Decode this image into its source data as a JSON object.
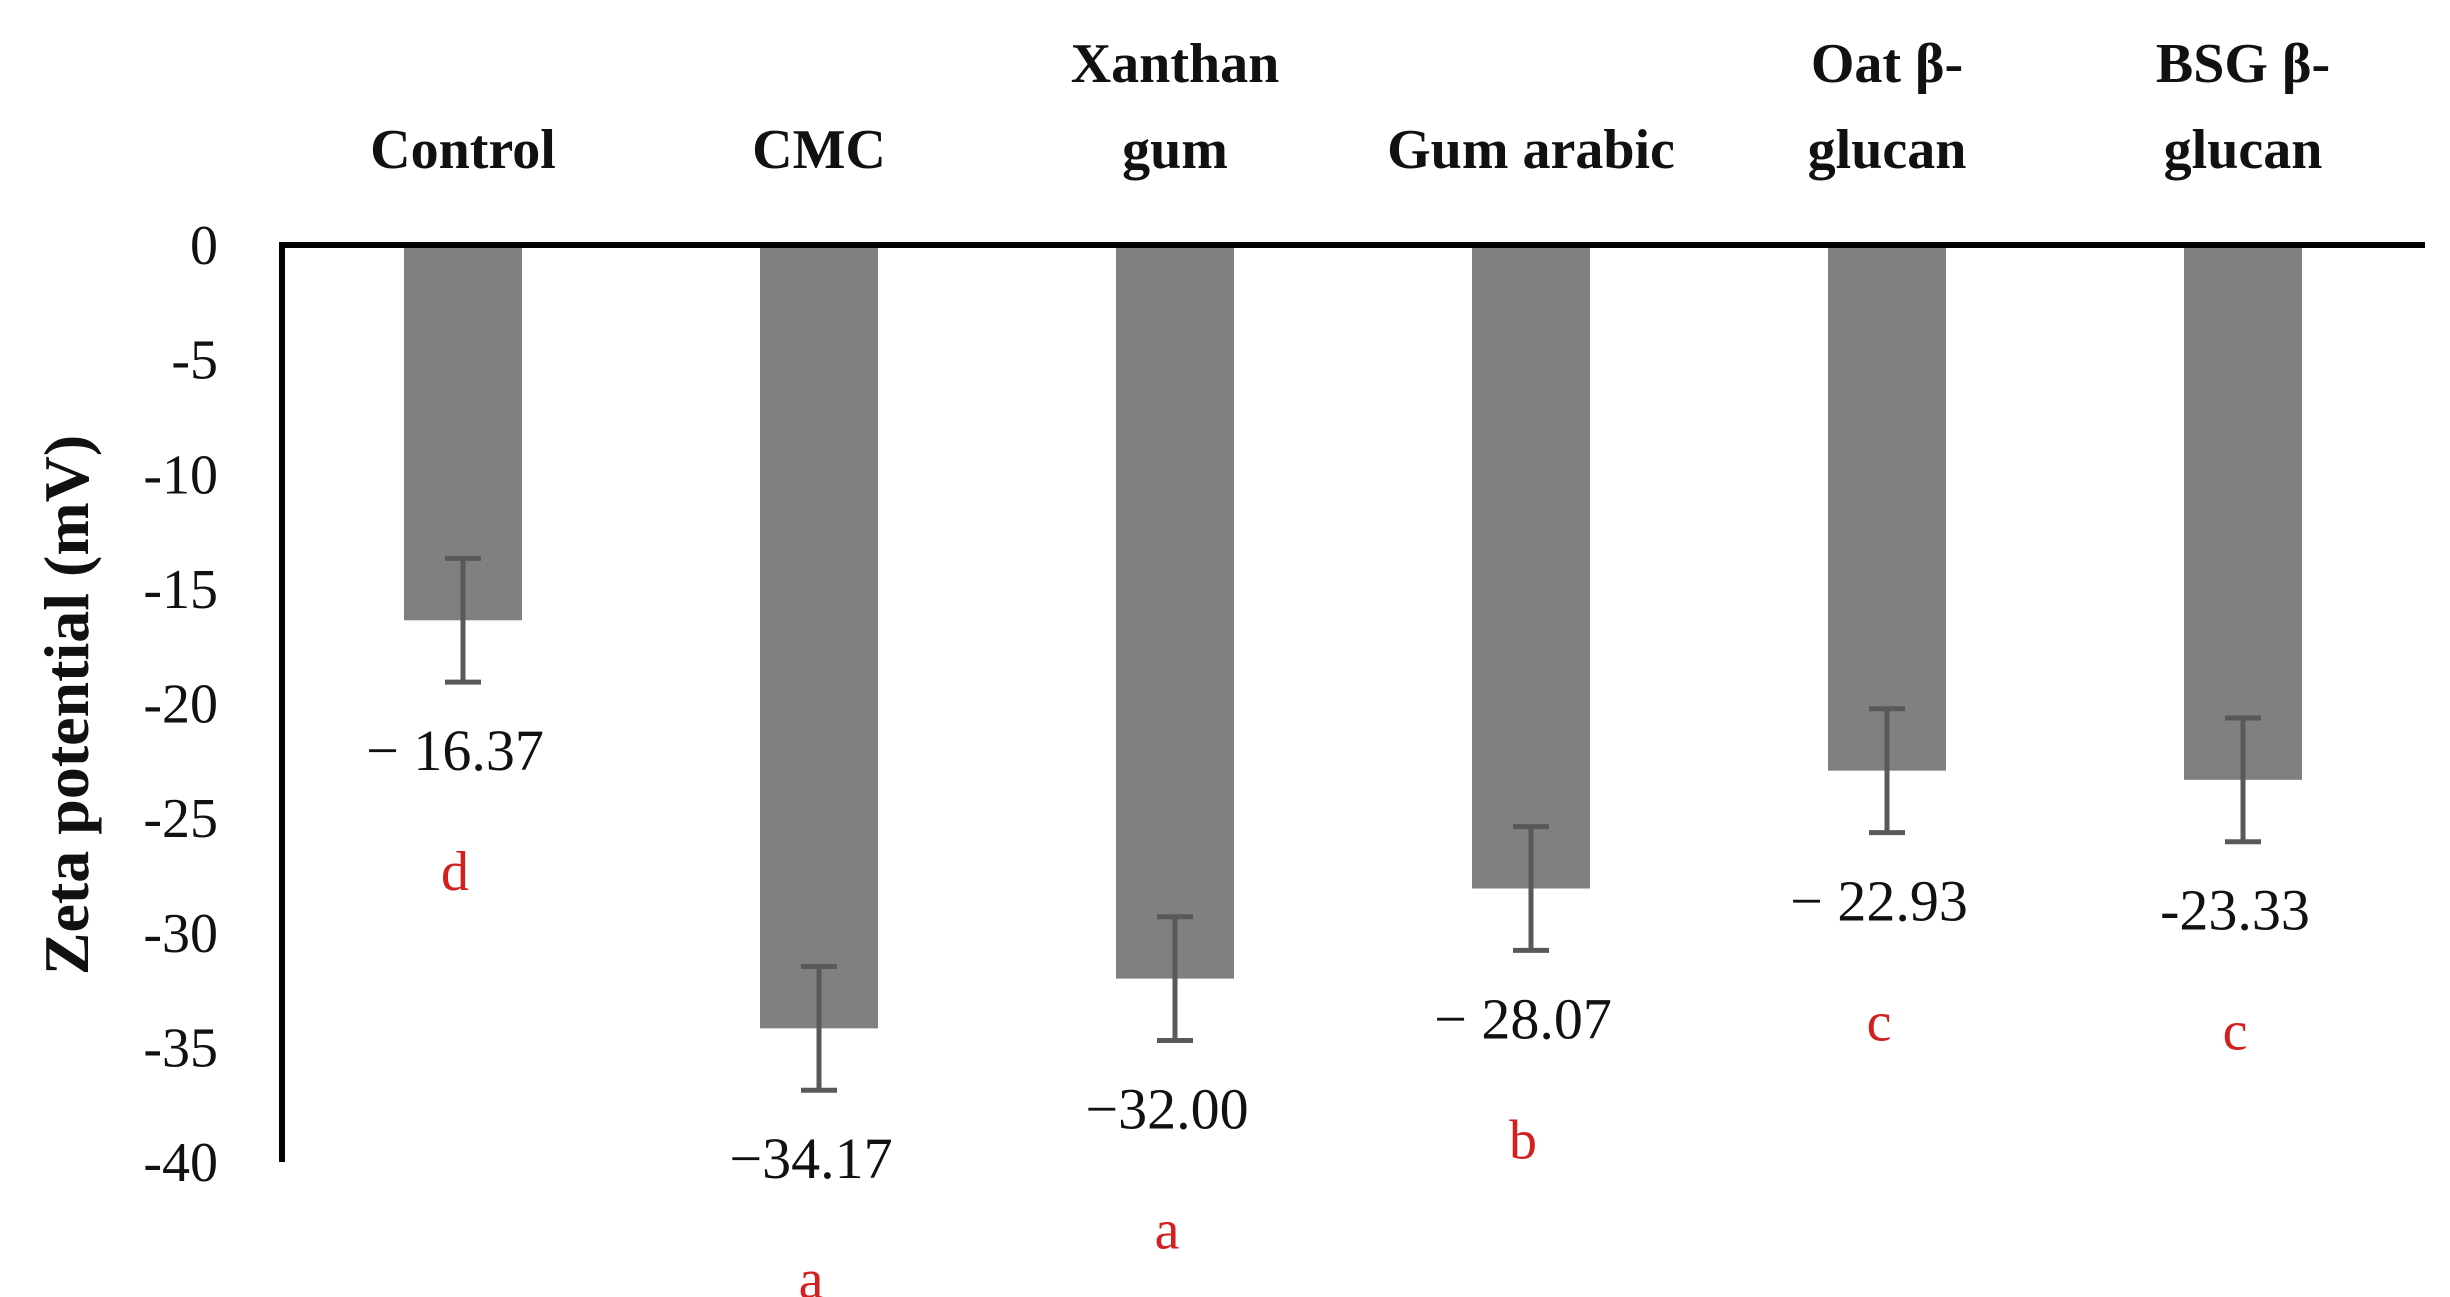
{
  "chart_data": {
    "type": "bar",
    "categories": [
      [
        "Control"
      ],
      [
        "CMC"
      ],
      [
        "Xanthan",
        "gum"
      ],
      [
        "Gum arabic"
      ],
      [
        "Oat β-",
        "glucan"
      ],
      [
        "BSG β-",
        "glucan"
      ]
    ],
    "values": [
      -16.37,
      -34.17,
      -32.0,
      -28.07,
      -22.93,
      -23.33
    ],
    "error": [
      2.7,
      2.7,
      2.7,
      2.7,
      2.7,
      2.7
    ],
    "value_labels": [
      "− 16.37",
      "−34.17",
      "−32.00",
      "− 28.07",
      "− 22.93",
      "-23.33"
    ],
    "significance_letters": [
      "d",
      "a",
      "a",
      "b",
      "c",
      "c"
    ],
    "ylabel": "Zeta potential (mV)",
    "xlabel": "",
    "title": "",
    "ylim": [
      -40,
      0
    ],
    "yticks": [
      0,
      -5,
      -10,
      -15,
      -20,
      -25,
      -30,
      -35,
      -40
    ],
    "grid": false,
    "category_axis_position": "top"
  },
  "colors": {
    "bar": "#808080",
    "error_bar": "#595959",
    "axis": "#000000",
    "text": "#111111",
    "letter": "#d21f1f"
  }
}
